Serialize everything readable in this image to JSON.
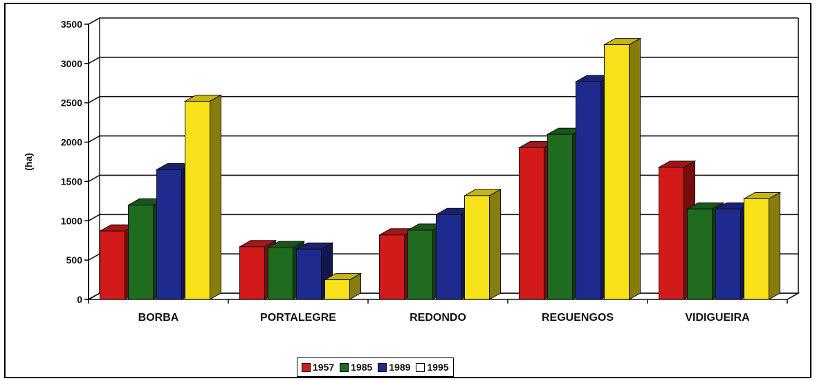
{
  "chart_data": {
    "type": "bar",
    "categories": [
      "BORBA",
      "PORTALEGRE",
      "REDONDO",
      "REGUENGOS",
      "VIDIGUEIRA"
    ],
    "series": [
      {
        "name": "1957",
        "color": "#d21a1a",
        "values": [
          870,
          670,
          820,
          1930,
          1680
        ]
      },
      {
        "name": "1985",
        "color": "#1f6b1f",
        "values": [
          1200,
          660,
          880,
          2100,
          1150
        ]
      },
      {
        "name": "1989",
        "color": "#1f2a8f",
        "values": [
          1650,
          640,
          1080,
          2770,
          1150
        ]
      },
      {
        "name": "1995",
        "color": "#f7e21a",
        "values": [
          2520,
          250,
          1320,
          3240,
          1280
        ]
      }
    ],
    "ylabel": "(ha)",
    "yticks": [
      0,
      500,
      1000,
      1500,
      2000,
      2500,
      3000,
      3500
    ],
    "ylim": [
      0,
      3500
    ],
    "grid": true,
    "legend_position": "bottom",
    "style": "3d-bar"
  }
}
